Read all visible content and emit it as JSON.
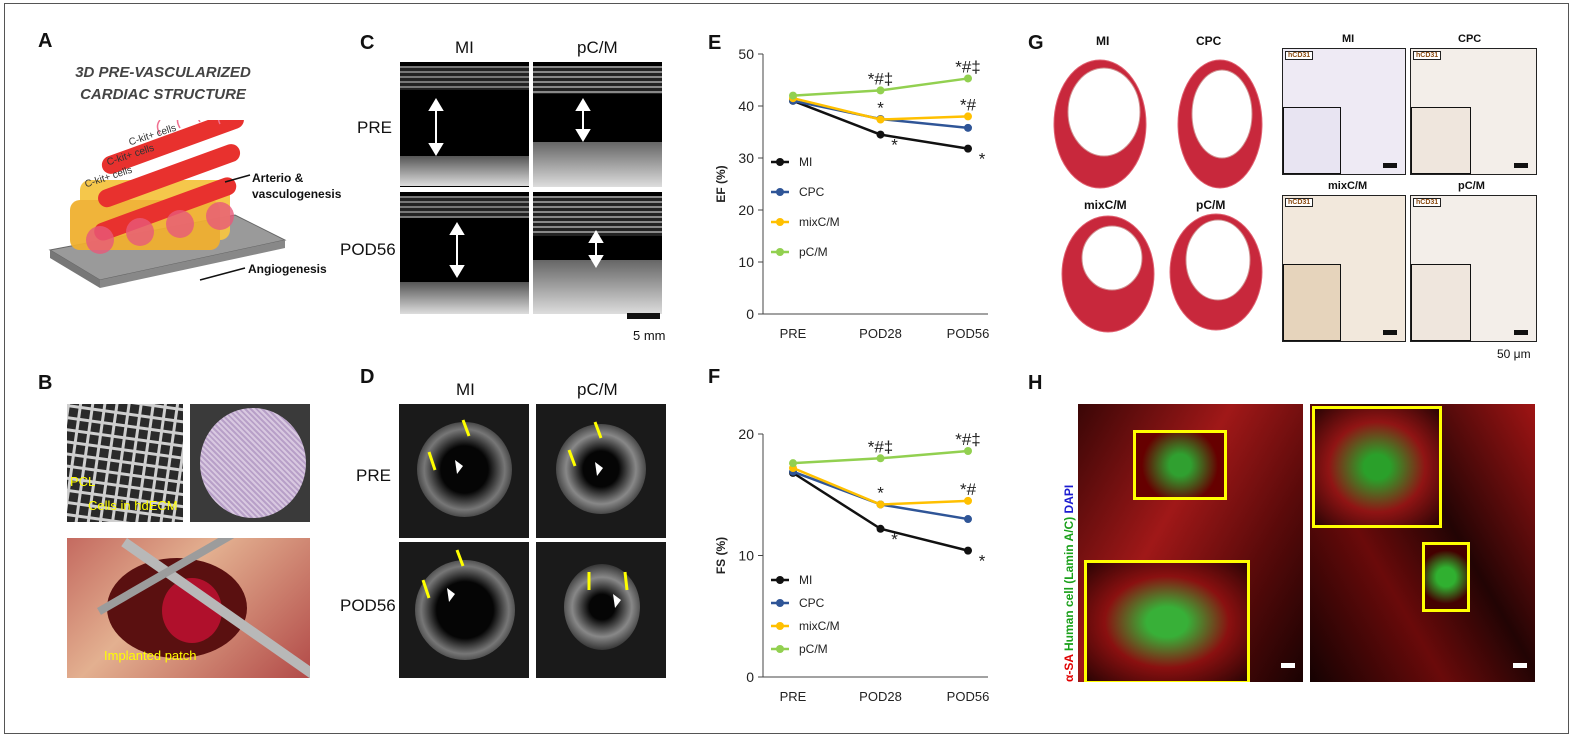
{
  "panel_a": {
    "label": "A",
    "title_line1": "3D PRE-VASCULARIZED",
    "title_line2": "CARDIAC STRUCTURE",
    "cell_labels": [
      "C-kit+ cells",
      "C-kit+ cells",
      "C-kit+ cells"
    ],
    "annotation_arterio_1": "Arterio &",
    "annotation_arterio_2": "vasculogenesis",
    "annotation_angio": "Angiogenesis"
  },
  "panel_b": {
    "label": "B",
    "annotation_pcl": "PCL",
    "annotation_cells": "Cells in hdECM",
    "annotation_patch": "Implanted patch"
  },
  "panel_c": {
    "label": "C",
    "col_headers": [
      "MI",
      "pC/M"
    ],
    "row_labels": [
      "PRE",
      "POD56"
    ],
    "scale_bar": "5 mm"
  },
  "panel_d": {
    "label": "D",
    "col_headers": [
      "MI",
      "pC/M"
    ],
    "row_labels": [
      "PRE",
      "POD56"
    ]
  },
  "panel_g": {
    "label": "G",
    "whole_heart_labels": [
      "MI",
      "CPC",
      "mixC/M",
      "pC/M"
    ],
    "histo_labels": [
      "MI",
      "CPC",
      "mixC/M",
      "pC/M"
    ],
    "stain_badge": "hCD31",
    "scale_bar": "50 μm"
  },
  "panel_h": {
    "label": "H",
    "axis_label_red": "α-SA",
    "axis_label_green": "Human cell (Lamin A/C)",
    "axis_label_blue": "DAPI"
  },
  "colors": {
    "MI": "#111111",
    "CPC": "#2f5597",
    "mixC/M": "#ffc000",
    "pC/M": "#92d050",
    "annotation_yellow": "#ffff00"
  },
  "chart_data": [
    {
      "panel": "E",
      "type": "line",
      "categories": [
        "PRE",
        "POD28",
        "POD56"
      ],
      "ylabel": "EF (%)",
      "ylim": [
        0,
        50
      ],
      "yticks": [
        0,
        10,
        20,
        30,
        40,
        50
      ],
      "series": [
        {
          "name": "MI",
          "values": [
            41.0,
            34.5,
            31.8
          ],
          "labels": [
            "",
            "*",
            "*"
          ]
        },
        {
          "name": "CPC",
          "values": [
            41.0,
            37.5,
            35.8
          ],
          "labels": [
            "",
            "",
            ""
          ]
        },
        {
          "name": "mixC/M",
          "values": [
            41.5,
            37.4,
            38.0
          ],
          "labels": [
            "",
            "*",
            "*,#"
          ]
        },
        {
          "name": "pC/M",
          "values": [
            42.0,
            43.0,
            45.3
          ],
          "labels": [
            "",
            "*,#,‡",
            "*,#,‡"
          ]
        }
      ],
      "legend_position": "left-middle"
    },
    {
      "panel": "F",
      "type": "line",
      "categories": [
        "PRE",
        "POD28",
        "POD56"
      ],
      "ylabel": "FS (%)",
      "ylim": [
        0,
        20
      ],
      "yticks": [
        0,
        10,
        20
      ],
      "series": [
        {
          "name": "MI",
          "values": [
            16.8,
            12.2,
            10.4
          ],
          "labels": [
            "",
            "*",
            "*"
          ]
        },
        {
          "name": "CPC",
          "values": [
            16.9,
            14.2,
            13.0
          ],
          "labels": [
            "",
            "",
            ""
          ]
        },
        {
          "name": "mixC/M",
          "values": [
            17.2,
            14.2,
            14.5
          ],
          "labels": [
            "",
            "*",
            "*,#"
          ]
        },
        {
          "name": "pC/M",
          "values": [
            17.6,
            18.0,
            18.6
          ],
          "labels": [
            "",
            "*,#,‡",
            "*,#,‡"
          ]
        }
      ],
      "legend_position": "left-lower"
    }
  ]
}
